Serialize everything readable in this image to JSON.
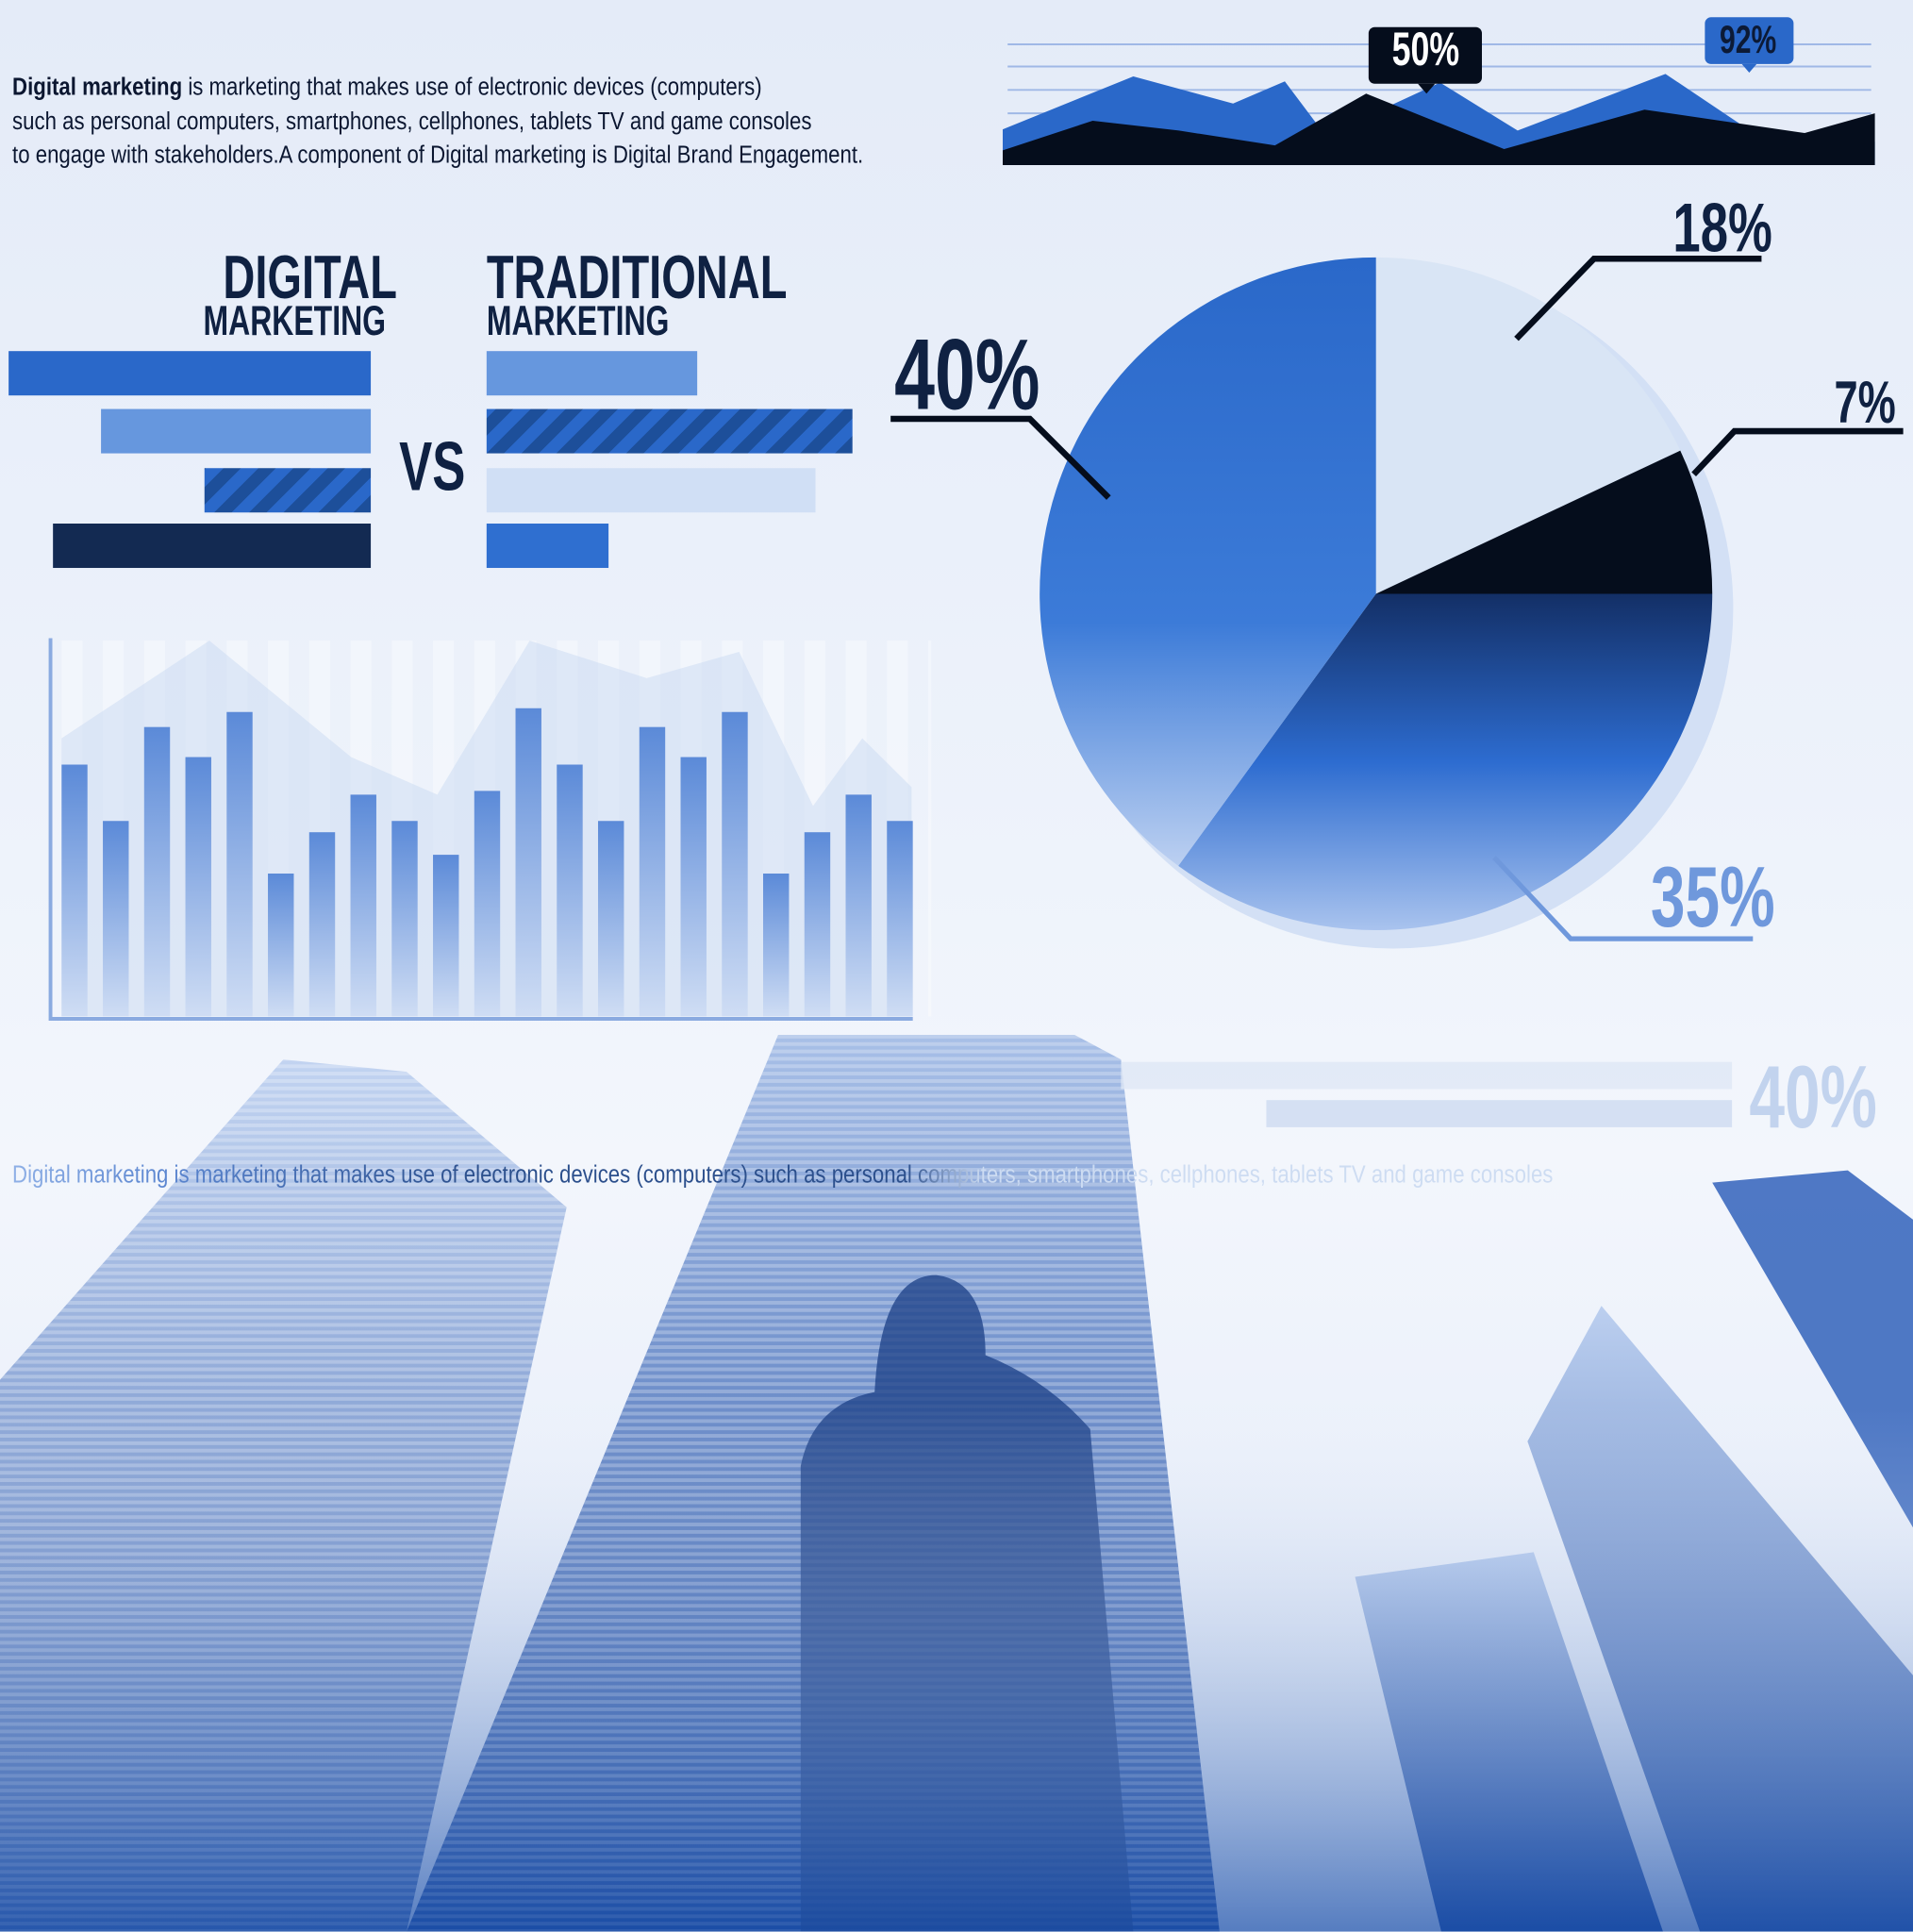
{
  "intro": {
    "bold": "Digital marketing",
    "line1_rest": " is marketing that makes use of electronic devices (computers)",
    "line2": "such as personal computers, smartphones, cellphones, tablets TV and game consoles",
    "line3": "to engage with stakeholders.A component of Digital marketing is Digital Brand Engagement."
  },
  "top_area_chart": {
    "callouts": [
      "50%",
      "92%"
    ],
    "colors": {
      "front": "#050d1c",
      "back": "#2a68c9",
      "badge_dark": "#050d1c",
      "badge_blue": "#2a68c9"
    }
  },
  "comparison": {
    "left_title": "DIGITAL",
    "left_subtitle": "MARKETING",
    "right_title": "TRADITIONAL",
    "right_subtitle": "MARKETING",
    "vs": "VS",
    "digital_bars": [
      98,
      73,
      45,
      86
    ],
    "traditional_bars": [
      57,
      99,
      89,
      33
    ]
  },
  "chart_data": [
    {
      "type": "bar",
      "values": [
        67,
        52,
        77,
        69,
        81,
        38,
        49,
        59,
        52,
        43,
        60,
        82,
        67,
        52,
        77,
        69,
        81,
        38,
        49,
        59,
        52
      ],
      "background_area": [
        74,
        100,
        69,
        59,
        100,
        90,
        97,
        56,
        74,
        61
      ],
      "ylim": [
        0,
        100
      ],
      "grid": false
    },
    {
      "type": "pie",
      "labels": [
        "18%",
        "7%",
        "35%",
        "40%"
      ],
      "values": [
        18,
        7,
        35,
        40
      ],
      "colors": [
        "#d9e5f5",
        "#050d1c",
        "#1d4a98",
        "#2a68c9"
      ]
    }
  ],
  "bottom": {
    "stat": "40%",
    "bar_values": [
      100,
      100
    ],
    "faded_text": "Digital marketing is marketing that makes use of electronic devices (computers) such as personal computers, smartphones, cellphones, tablets TV and game consoles"
  }
}
